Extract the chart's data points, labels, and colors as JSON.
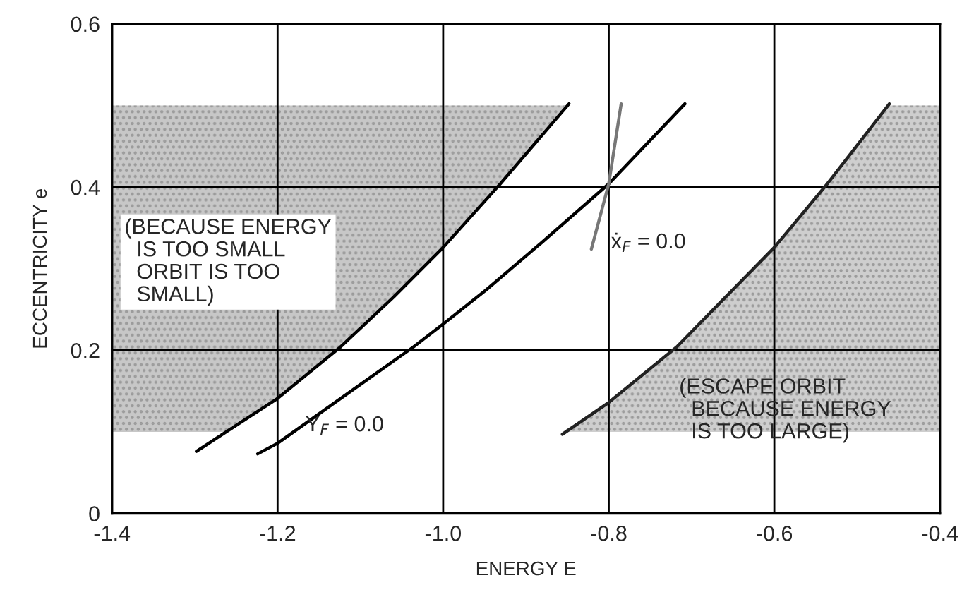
{
  "chart_data": {
    "type": "line",
    "xlabel": "ENERGY E",
    "ylabel": "ECCENTRICITY e",
    "xlim": [
      -1.4,
      -0.4
    ],
    "ylim": [
      0,
      0.6
    ],
    "xticks": [
      -1.4,
      -1.2,
      {
        "value": -1.0,
        "label": "-1.0"
      },
      -0.8,
      -0.6,
      -0.4
    ],
    "yticks": [
      0,
      0.2,
      0.4,
      0.6
    ],
    "grid": true,
    "line_style": "solid",
    "series": [
      {
        "color": "#000000",
        "x": [
          -1.4,
          -1.298,
          -1.262,
          -1.2,
          -1.124,
          -1.06,
          -1.0,
          -0.931,
          -0.848
        ],
        "values": [
          null,
          0.076,
          0.1,
          0.141,
          0.204,
          0.265,
          0.326,
          0.404,
          0.502
        ],
        "lower": [
          0.1,
          0.1,
          0.1,
          0.141,
          0.204,
          0.265,
          0.326,
          0.404,
          0.5
        ],
        "upper": [
          0.5,
          0.5,
          0.5,
          0.5,
          0.5,
          0.5,
          0.5,
          0.5,
          0.5
        ]
      },
      {
        "color": "#000000",
        "x": [
          -1.224,
          -1.2,
          -1.1,
          -1.036,
          -1.0,
          -0.948,
          -0.881,
          -0.8,
          -0.708
        ],
        "values": [
          0.073,
          0.086,
          0.158,
          0.204,
          0.232,
          0.274,
          0.332,
          0.404,
          0.502
        ]
      },
      {
        "color": "#777777",
        "x": [
          -0.821,
          -0.8,
          -0.785
        ],
        "values": [
          0.324,
          0.404,
          0.502
        ]
      },
      {
        "color": "#222222",
        "x": [
          -0.856,
          -0.8,
          -0.718,
          -0.6,
          -0.536,
          -0.461,
          -0.4
        ],
        "values": [
          0.097,
          0.136,
          0.204,
          0.326,
          0.404,
          0.502,
          null
        ],
        "lower": [
          0.1,
          0.1,
          0.1,
          0.1,
          0.1,
          0.1,
          0.1
        ],
        "upper": [
          0.1,
          0.136,
          0.204,
          0.326,
          0.404,
          0.5,
          0.5
        ]
      }
    ],
    "annotations": [
      "(BECAUSE ENERGY\n  IS TOO SMALL\n  ORBIT IS TOO\n  SMALL)",
      "(ESCAPE ORBIT\n  BECAUSE ENERGY\n  IS TOO LARGE)",
      {
        "text": "Y$_{F}$ = 0.0",
        "x": -1.19,
        "y": 0.1
      },
      {
        "text": "ẋ$_{F}$ = 0.0",
        "x": -0.821,
        "y": 0.324
      }
    ]
  }
}
